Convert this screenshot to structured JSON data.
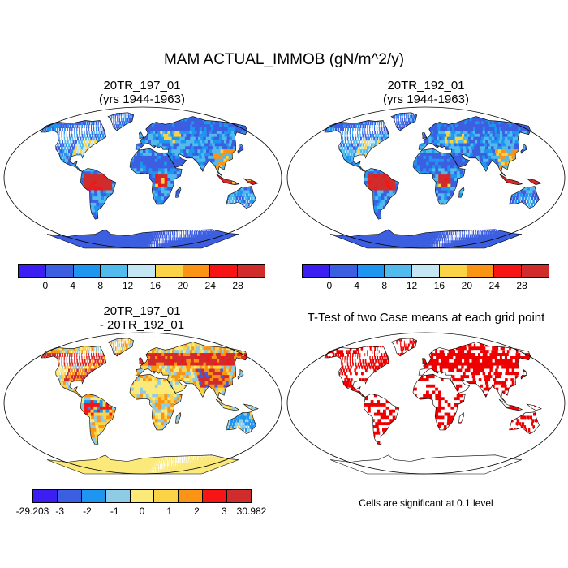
{
  "title": "MAM ACTUAL_IMMOB (gN/m^2/y)",
  "panels": [
    {
      "id": "p1",
      "title_line1": "20TR_197_01",
      "title_line2": "(yrs 1944-1963)",
      "kind": "mean"
    },
    {
      "id": "p2",
      "title_line1": "20TR_192_01",
      "title_line2": "(yrs 1944-1963)",
      "kind": "mean"
    },
    {
      "id": "p3",
      "title_line1": "20TR_197_01",
      "title_line2": "- 20TR_192_01",
      "kind": "diff"
    },
    {
      "id": "p4",
      "title_line1": "T-Test of two Case means at each grid point",
      "title_line2": "",
      "kind": "ttest"
    }
  ],
  "mean_colorbar": {
    "colors": [
      "#3d1ef2",
      "#3c5ee0",
      "#1e96f0",
      "#52bbee",
      "#c4e6f2",
      "#fbd346",
      "#fb9314",
      "#f61414",
      "#d12c2c"
    ],
    "labels": [
      "0",
      "4",
      "8",
      "12",
      "16",
      "20",
      "24",
      "28"
    ]
  },
  "diff_colorbar": {
    "colors": [
      "#3d1ef2",
      "#3c5ee0",
      "#1e96f0",
      "#8ecbe6",
      "#fbe97a",
      "#fbd346",
      "#fb9314",
      "#f61414",
      "#d12c2c"
    ],
    "labels": [
      "-29.203",
      "-3",
      "-2",
      "-1",
      "0",
      "1",
      "2",
      "3",
      "30.982"
    ]
  },
  "sig_note": "Cells are significant at 0.1 level"
}
